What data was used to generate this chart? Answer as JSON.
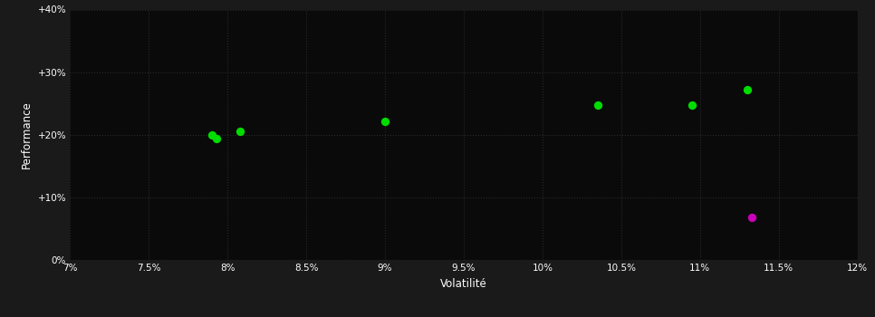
{
  "background_color": "#1a1a1a",
  "plot_bg_color": "#0a0a0a",
  "grid_color": "#2a2a2a",
  "text_color": "#ffffff",
  "xlabel": "Volatilité",
  "ylabel": "Performance",
  "xlim": [
    0.07,
    0.12
  ],
  "ylim": [
    0.0,
    0.4
  ],
  "xticks": [
    0.07,
    0.075,
    0.08,
    0.085,
    0.09,
    0.095,
    0.1,
    0.105,
    0.11,
    0.115,
    0.12
  ],
  "xtick_labels": [
    "7%",
    "7.5%",
    "8%",
    "8.5%",
    "9%",
    "9.5%",
    "10%",
    "10.5%",
    "11%",
    "11.5%",
    "12%"
  ],
  "yticks": [
    0.0,
    0.1,
    0.2,
    0.3,
    0.4
  ],
  "ytick_labels": [
    "0%",
    "+10%",
    "+20%",
    "+30%",
    "+40%"
  ],
  "green_points": [
    [
      0.079,
      0.2
    ],
    [
      0.0808,
      0.205
    ],
    [
      0.0793,
      0.194
    ],
    [
      0.09,
      0.222
    ],
    [
      0.1035,
      0.248
    ],
    [
      0.1095,
      0.248
    ],
    [
      0.113,
      0.272
    ]
  ],
  "magenta_points": [
    [
      0.1133,
      0.068
    ]
  ],
  "green_color": "#00dd00",
  "magenta_color": "#cc00bb",
  "marker_size": 45,
  "figwidth": 9.66,
  "figheight": 3.5,
  "dpi": 100
}
